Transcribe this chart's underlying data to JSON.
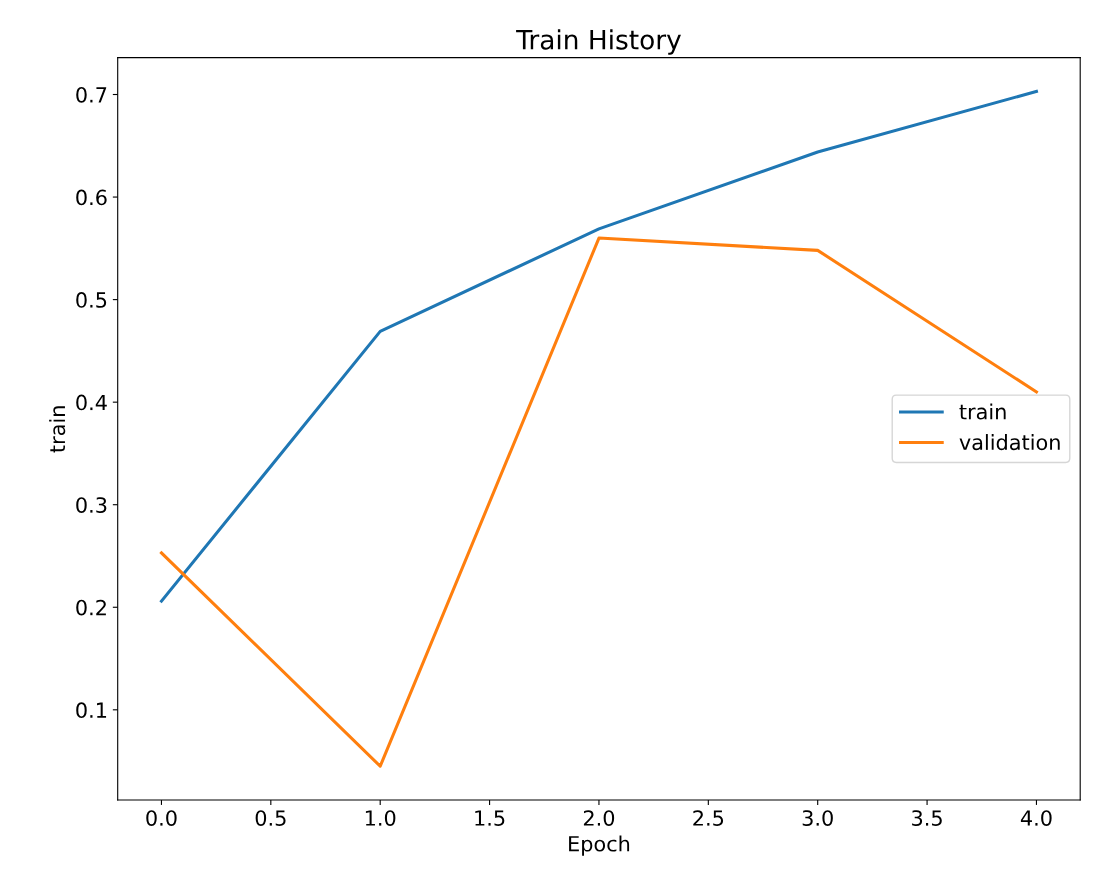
{
  "chart_data": {
    "type": "line",
    "title": "Train History",
    "xlabel": "Epoch",
    "ylabel": "train",
    "x": [
      0,
      1,
      2,
      3,
      4
    ],
    "series": [
      {
        "name": "train",
        "color": "#1f77b4",
        "values": [
          0.206,
          0.469,
          0.569,
          0.644,
          0.703
        ]
      },
      {
        "name": "validation",
        "color": "#ff7f0e",
        "values": [
          0.253,
          0.045,
          0.56,
          0.548,
          0.41
        ]
      }
    ],
    "xlim": [
      -0.2,
      4.2
    ],
    "xticks": [
      {
        "value": 0,
        "label": "0.0"
      },
      0.5,
      {
        "value": 1,
        "label": "1.0"
      },
      1.5,
      {
        "value": 2,
        "label": "2.0"
      },
      2.5,
      {
        "value": 3,
        "label": "3.0"
      },
      3.5,
      {
        "value": 4,
        "label": "4.0"
      }
    ],
    "ylim": [
      0.012,
      0.736
    ],
    "yticks": [
      0.1,
      0.2,
      0.3,
      0.4,
      0.5,
      0.6,
      0.7
    ],
    "legend": "center right",
    "grid": false,
    "marker": "none",
    "line_style": "solid"
  }
}
